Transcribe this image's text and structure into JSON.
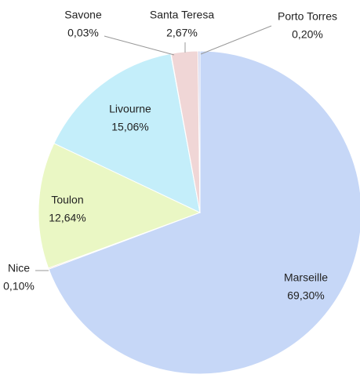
{
  "chart_data": {
    "type": "pie",
    "categories": [
      "Marseille",
      "Nice",
      "Toulon",
      "Livourne",
      "Savone",
      "Santa Teresa",
      "Porto Torres"
    ],
    "values": [
      69.3,
      0.1,
      12.64,
      15.06,
      0.03,
      2.67,
      0.2
    ],
    "value_labels": [
      "69,30%",
      "0,10%",
      "12,64%",
      "15,06%",
      "0,03%",
      "2,67%",
      "0,20%"
    ],
    "colors": [
      "#c6d7f7",
      "#f4b183",
      "#eaf7c4",
      "#c4eefa",
      "#d9d9d9",
      "#f0d6d6",
      "#cfcfe8"
    ]
  }
}
